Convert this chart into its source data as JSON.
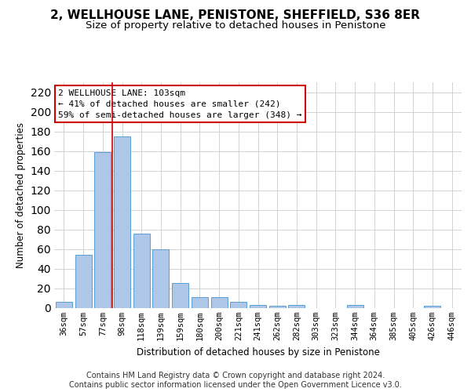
{
  "title": "2, WELLHOUSE LANE, PENISTONE, SHEFFIELD, S36 8ER",
  "subtitle": "Size of property relative to detached houses in Penistone",
  "xlabel": "Distribution of detached houses by size in Penistone",
  "ylabel": "Number of detached properties",
  "categories": [
    "36sqm",
    "57sqm",
    "77sqm",
    "98sqm",
    "118sqm",
    "139sqm",
    "159sqm",
    "180sqm",
    "200sqm",
    "221sqm",
    "241sqm",
    "262sqm",
    "282sqm",
    "303sqm",
    "323sqm",
    "344sqm",
    "364sqm",
    "385sqm",
    "405sqm",
    "426sqm",
    "446sqm"
  ],
  "values": [
    6,
    54,
    159,
    175,
    76,
    60,
    25,
    11,
    11,
    6,
    3,
    2,
    3,
    0,
    0,
    3,
    0,
    0,
    0,
    2,
    0
  ],
  "bar_color": "#aec6e8",
  "bar_edge_color": "#5a9fd4",
  "grid_color": "#cccccc",
  "annotation_line1": "2 WELLHOUSE LANE: 103sqm",
  "annotation_line2": "← 41% of detached houses are smaller (242)",
  "annotation_line3": "59% of semi-detached houses are larger (348) →",
  "annotation_box_color": "#ffffff",
  "annotation_box_edge_color": "#cc0000",
  "vline_color": "#cc0000",
  "vline_x_index": 3,
  "ylim": [
    0,
    230
  ],
  "yticks": [
    0,
    20,
    40,
    60,
    80,
    100,
    120,
    140,
    160,
    180,
    200,
    220
  ],
  "footer_text": "Contains HM Land Registry data © Crown copyright and database right 2024.\nContains public sector information licensed under the Open Government Licence v3.0.",
  "title_fontsize": 11,
  "subtitle_fontsize": 9.5,
  "axis_label_fontsize": 8.5,
  "tick_fontsize": 7.5,
  "footer_fontsize": 7,
  "annotation_fontsize": 8
}
